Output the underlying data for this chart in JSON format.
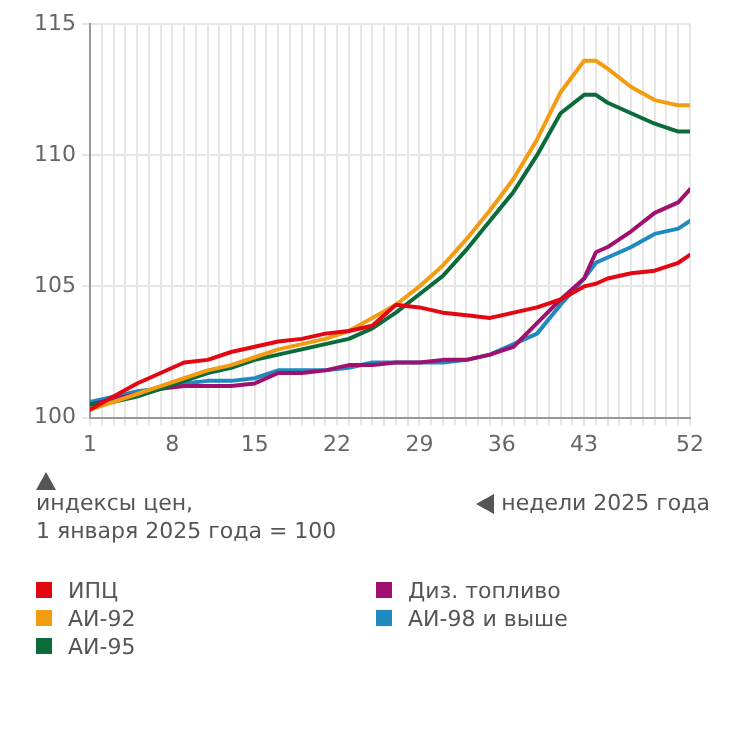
{
  "chart_data": {
    "type": "line",
    "xlabel": "недели 2025 года",
    "ylabel": "индексы цен,\n1 января 2025 года = 100",
    "x": [
      1,
      3,
      5,
      7,
      9,
      11,
      13,
      15,
      17,
      19,
      21,
      23,
      25,
      27,
      29,
      31,
      33,
      35,
      37,
      39,
      41,
      43,
      44,
      45,
      47,
      49,
      51,
      52
    ],
    "series": [
      {
        "name": "ИПЦ",
        "color": "#e30613",
        "values": [
          100.3,
          100.8,
          101.3,
          101.7,
          102.1,
          102.2,
          102.5,
          102.7,
          102.9,
          103.0,
          103.2,
          103.3,
          103.5,
          104.3,
          104.2,
          104.0,
          103.9,
          103.8,
          104.0,
          104.2,
          104.5,
          105.0,
          105.1,
          105.3,
          105.5,
          105.6,
          105.9,
          106.2
        ]
      },
      {
        "name": "АИ-92",
        "color": "#f39c12",
        "values": [
          100.3,
          100.6,
          100.9,
          101.2,
          101.5,
          101.8,
          102.0,
          102.3,
          102.6,
          102.8,
          103.0,
          103.3,
          103.8,
          104.3,
          105.0,
          105.8,
          106.8,
          107.9,
          109.1,
          110.6,
          112.4,
          113.6,
          113.6,
          113.3,
          112.6,
          112.1,
          111.9,
          111.9
        ]
      },
      {
        "name": "АИ-95",
        "color": "#0b6b3a",
        "values": [
          100.5,
          100.6,
          100.8,
          101.1,
          101.4,
          101.7,
          101.9,
          102.2,
          102.4,
          102.6,
          102.8,
          103.0,
          103.4,
          104.0,
          104.7,
          105.4,
          106.4,
          107.5,
          108.6,
          110.0,
          111.6,
          112.3,
          112.3,
          112.0,
          111.6,
          111.2,
          110.9,
          110.9
        ]
      },
      {
        "name": "Диз. топливо",
        "color": "#a0106e",
        "values": [
          100.5,
          100.7,
          100.9,
          101.1,
          101.2,
          101.2,
          101.2,
          101.3,
          101.7,
          101.7,
          101.8,
          102.0,
          102.0,
          102.1,
          102.1,
          102.2,
          102.2,
          102.4,
          102.7,
          103.6,
          104.5,
          105.3,
          106.3,
          106.5,
          107.1,
          107.8,
          108.2,
          108.7
        ]
      },
      {
        "name": "АИ-98 и выше",
        "color": "#1f8ac0",
        "values": [
          100.6,
          100.8,
          101.0,
          101.1,
          101.3,
          101.4,
          101.4,
          101.5,
          101.8,
          101.8,
          101.8,
          101.9,
          102.1,
          102.1,
          102.1,
          102.1,
          102.2,
          102.4,
          102.8,
          103.2,
          104.3,
          105.3,
          105.9,
          106.1,
          106.5,
          107.0,
          107.2,
          107.5
        ]
      }
    ],
    "xlim": [
      1,
      52
    ],
    "ylim": [
      100,
      115
    ],
    "yticks": [
      100,
      105,
      110,
      115
    ],
    "xticks": [
      1,
      {
        "value": 2,
        "label": null
      },
      {
        "value": 3,
        "label": null
      },
      {
        "value": 4,
        "label": null
      },
      {
        "value": 5,
        "label": null
      },
      {
        "value": 6,
        "label": null
      },
      {
        "value": 7,
        "label": null
      },
      8,
      {
        "value": 9,
        "label": null
      },
      {
        "value": 10,
        "label": null
      },
      {
        "value": 11,
        "label": null
      },
      {
        "value": 12,
        "label": null
      },
      {
        "value": 13,
        "label": null
      },
      {
        "value": 14,
        "label": null
      },
      15,
      {
        "value": 16,
        "label": null
      },
      {
        "value": 17,
        "label": null
      },
      {
        "value": 18,
        "label": null
      },
      {
        "value": 19,
        "label": null
      },
      {
        "value": 20,
        "label": null
      },
      {
        "value": 21,
        "label": null
      },
      22,
      {
        "value": 23,
        "label": null
      },
      {
        "value": 24,
        "label": null
      },
      {
        "value": 25,
        "label": null
      },
      {
        "value": 26,
        "label": null
      },
      {
        "value": 27,
        "label": null
      },
      {
        "value": 28,
        "label": null
      },
      29,
      {
        "value": 30,
        "label": null
      },
      {
        "value": 31,
        "label": null
      },
      {
        "value": 32,
        "label": null
      },
      {
        "value": 33,
        "label": null
      },
      {
        "value": 34,
        "label": null
      },
      {
        "value": 35,
        "label": null
      },
      36,
      {
        "value": 37,
        "label": null
      },
      {
        "value": 38,
        "label": null
      },
      {
        "value": 39,
        "label": null
      },
      {
        "value": 40,
        "label": null
      },
      {
        "value": 41,
        "label": null
      },
      {
        "value": 42,
        "label": null
      },
      43,
      {
        "value": 44,
        "label": null
      },
      {
        "value": 45,
        "label": null
      },
      {
        "value": 46,
        "label": null
      },
      {
        "value": 47,
        "label": null
      },
      {
        "value": 48,
        "label": null
      },
      {
        "value": 49,
        "label": null
      },
      {
        "value": 50,
        "label": null
      },
      {
        "value": 51,
        "label": null
      },
      52
    ],
    "grid": true,
    "legend": "bottom",
    "marker": "none",
    "line_style": "solid"
  }
}
